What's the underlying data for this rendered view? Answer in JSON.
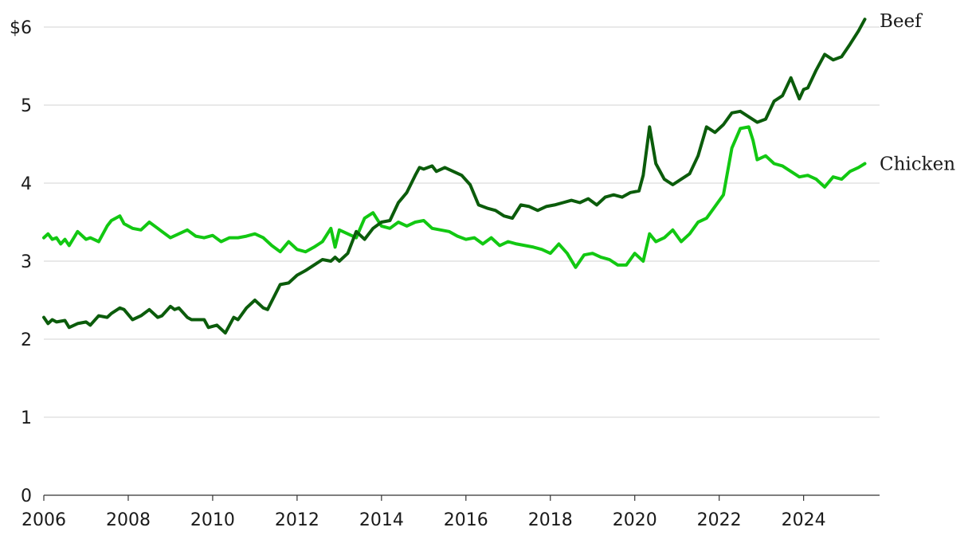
{
  "chart_data": {
    "type": "line",
    "title": "",
    "xlabel": "",
    "ylabel": "",
    "xlim": [
      2006,
      2025.8
    ],
    "ylim": [
      0,
      6
    ],
    "y_ticks": [
      {
        "value": 0,
        "label": "0"
      },
      {
        "value": 1,
        "label": "1"
      },
      {
        "value": 2,
        "label": "2"
      },
      {
        "value": 3,
        "label": "3"
      },
      {
        "value": 4,
        "label": "4"
      },
      {
        "value": 5,
        "label": "5"
      },
      {
        "value": 6,
        "label": "$6"
      }
    ],
    "x_ticks": [
      {
        "value": 2006,
        "label": "2006"
      },
      {
        "value": 2008,
        "label": "2008"
      },
      {
        "value": 2010,
        "label": "2010"
      },
      {
        "value": 2012,
        "label": "2012"
      },
      {
        "value": 2014,
        "label": "2014"
      },
      {
        "value": 2016,
        "label": "2016"
      },
      {
        "value": 2018,
        "label": "2018"
      },
      {
        "value": 2020,
        "label": "2020"
      },
      {
        "value": 2022,
        "label": "2022"
      },
      {
        "value": 2024,
        "label": "2024"
      }
    ],
    "grid": true,
    "legend": "direct labels at line ends",
    "series": [
      {
        "name": "Beef",
        "color": "#0b5c0b",
        "x": [
          2006.0,
          2006.1,
          2006.2,
          2006.3,
          2006.5,
          2006.6,
          2006.8,
          2007.0,
          2007.1,
          2007.3,
          2007.5,
          2007.6,
          2007.8,
          2007.9,
          2008.1,
          2008.3,
          2008.5,
          2008.7,
          2008.8,
          2009.0,
          2009.1,
          2009.2,
          2009.4,
          2009.5,
          2009.8,
          2009.9,
          2010.1,
          2010.3,
          2010.5,
          2010.6,
          2010.8,
          2011.0,
          2011.2,
          2011.3,
          2011.6,
          2011.8,
          2012.0,
          2012.2,
          2012.4,
          2012.6,
          2012.8,
          2012.9,
          2013.0,
          2013.2,
          2013.4,
          2013.6,
          2013.8,
          2014.0,
          2014.2,
          2014.4,
          2014.6,
          2014.8,
          2014.9,
          2015.0,
          2015.2,
          2015.3,
          2015.5,
          2015.7,
          2015.9,
          2016.1,
          2016.3,
          2016.5,
          2016.7,
          2016.9,
          2017.1,
          2017.3,
          2017.5,
          2017.7,
          2017.9,
          2018.1,
          2018.3,
          2018.5,
          2018.7,
          2018.9,
          2019.1,
          2019.3,
          2019.5,
          2019.7,
          2019.9,
          2020.1,
          2020.2,
          2020.35,
          2020.5,
          2020.7,
          2020.9,
          2021.1,
          2021.3,
          2021.5,
          2021.7,
          2021.9,
          2022.1,
          2022.3,
          2022.5,
          2022.7,
          2022.9,
          2023.1,
          2023.3,
          2023.5,
          2023.7,
          2023.9,
          2024.0,
          2024.1,
          2024.3,
          2024.5,
          2024.7,
          2024.9,
          2025.1,
          2025.3,
          2025.45
        ],
        "values": [
          2.28,
          2.2,
          2.25,
          2.22,
          2.24,
          2.15,
          2.2,
          2.22,
          2.18,
          2.3,
          2.28,
          2.33,
          2.4,
          2.38,
          2.25,
          2.3,
          2.38,
          2.28,
          2.3,
          2.42,
          2.38,
          2.4,
          2.28,
          2.25,
          2.25,
          2.15,
          2.18,
          2.08,
          2.28,
          2.25,
          2.4,
          2.5,
          2.4,
          2.38,
          2.7,
          2.72,
          2.82,
          2.88,
          2.95,
          3.02,
          3.0,
          3.05,
          3.0,
          3.1,
          3.38,
          3.28,
          3.42,
          3.5,
          3.52,
          3.75,
          3.88,
          4.1,
          4.2,
          4.18,
          4.22,
          4.15,
          4.2,
          4.15,
          4.1,
          3.98,
          3.72,
          3.68,
          3.65,
          3.58,
          3.55,
          3.72,
          3.7,
          3.65,
          3.7,
          3.72,
          3.75,
          3.78,
          3.75,
          3.8,
          3.72,
          3.82,
          3.85,
          3.82,
          3.88,
          3.9,
          4.1,
          4.72,
          4.25,
          4.05,
          3.98,
          4.05,
          4.12,
          4.35,
          4.72,
          4.65,
          4.75,
          4.9,
          4.92,
          4.85,
          4.78,
          4.82,
          5.05,
          5.12,
          5.35,
          5.08,
          5.2,
          5.22,
          5.45,
          5.65,
          5.58,
          5.62,
          5.78,
          5.95,
          6.1
        ]
      },
      {
        "name": "Chicken",
        "color": "#12c812",
        "x": [
          2006.0,
          2006.1,
          2006.2,
          2006.3,
          2006.4,
          2006.5,
          2006.6,
          2006.8,
          2007.0,
          2007.1,
          2007.3,
          2007.5,
          2007.6,
          2007.8,
          2007.9,
          2008.1,
          2008.3,
          2008.5,
          2008.7,
          2008.8,
          2009.0,
          2009.2,
          2009.4,
          2009.6,
          2009.8,
          2010.0,
          2010.2,
          2010.4,
          2010.6,
          2010.8,
          2011.0,
          2011.2,
          2011.4,
          2011.6,
          2011.8,
          2012.0,
          2012.2,
          2012.4,
          2012.6,
          2012.8,
          2012.9,
          2013.0,
          2013.2,
          2013.4,
          2013.6,
          2013.8,
          2014.0,
          2014.2,
          2014.4,
          2014.6,
          2014.8,
          2015.0,
          2015.2,
          2015.4,
          2015.6,
          2015.8,
          2016.0,
          2016.2,
          2016.4,
          2016.6,
          2016.8,
          2017.0,
          2017.2,
          2017.4,
          2017.6,
          2017.8,
          2018.0,
          2018.2,
          2018.4,
          2018.6,
          2018.8,
          2019.0,
          2019.2,
          2019.4,
          2019.6,
          2019.8,
          2020.0,
          2020.2,
          2020.35,
          2020.5,
          2020.7,
          2020.9,
          2021.1,
          2021.3,
          2021.5,
          2021.7,
          2021.9,
          2022.1,
          2022.3,
          2022.5,
          2022.7,
          2022.8,
          2022.9,
          2023.1,
          2023.3,
          2023.5,
          2023.7,
          2023.9,
          2024.1,
          2024.3,
          2024.5,
          2024.7,
          2024.9,
          2025.1,
          2025.3,
          2025.45
        ],
        "values": [
          3.3,
          3.35,
          3.28,
          3.3,
          3.22,
          3.28,
          3.2,
          3.38,
          3.28,
          3.3,
          3.25,
          3.45,
          3.52,
          3.58,
          3.48,
          3.42,
          3.4,
          3.5,
          3.42,
          3.38,
          3.3,
          3.35,
          3.4,
          3.32,
          3.3,
          3.33,
          3.25,
          3.3,
          3.3,
          3.32,
          3.35,
          3.3,
          3.2,
          3.12,
          3.25,
          3.15,
          3.12,
          3.18,
          3.25,
          3.42,
          3.18,
          3.4,
          3.35,
          3.3,
          3.55,
          3.62,
          3.45,
          3.42,
          3.5,
          3.45,
          3.5,
          3.52,
          3.42,
          3.4,
          3.38,
          3.32,
          3.28,
          3.3,
          3.22,
          3.3,
          3.2,
          3.25,
          3.22,
          3.2,
          3.18,
          3.15,
          3.1,
          3.22,
          3.1,
          2.92,
          3.08,
          3.1,
          3.05,
          3.02,
          2.95,
          2.95,
          3.1,
          3.0,
          3.35,
          3.25,
          3.3,
          3.4,
          3.25,
          3.35,
          3.5,
          3.55,
          3.7,
          3.85,
          4.45,
          4.7,
          4.72,
          4.55,
          4.3,
          4.35,
          4.25,
          4.22,
          4.15,
          4.08,
          4.1,
          4.05,
          3.95,
          4.08,
          4.05,
          4.15,
          4.2,
          4.25
        ]
      }
    ]
  }
}
